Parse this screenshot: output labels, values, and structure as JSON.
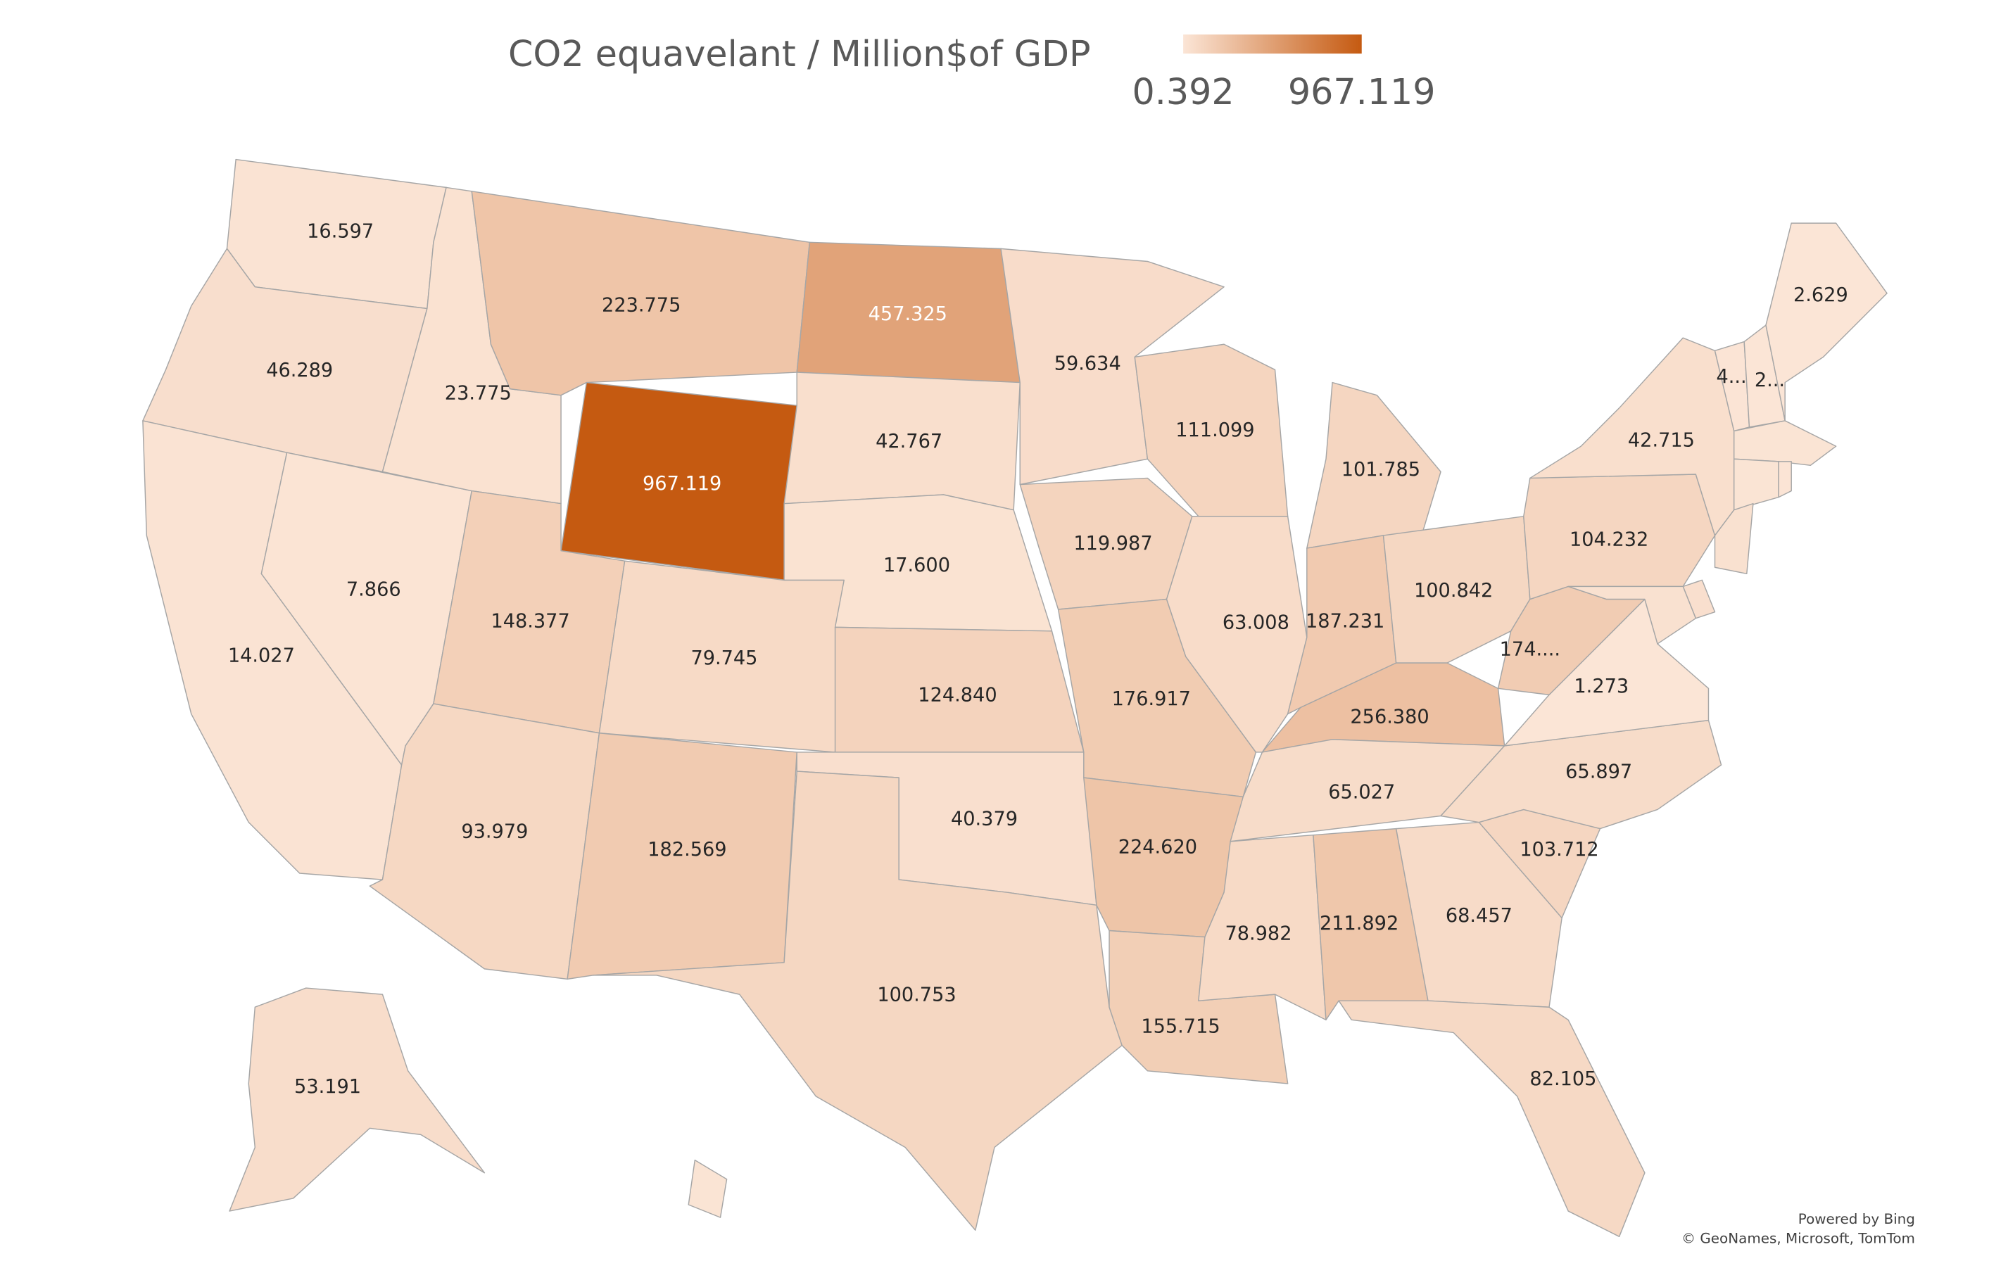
{
  "title": "CO2 equavelant / Million$of GDP",
  "legend": {
    "min": 0.392,
    "max": 967.119,
    "colors": [
      "#fbe5d6",
      "#c55a11"
    ]
  },
  "regions": [
    {
      "label": "16.597",
      "value": 16.597
    },
    {
      "label": "46.289",
      "value": 46.289
    },
    {
      "label": "14.027",
      "value": 14.027
    },
    {
      "label": "7.866",
      "value": 7.866
    },
    {
      "label": "23.775",
      "value": 23.775
    },
    {
      "label": "223.775",
      "value": 223.775
    },
    {
      "label": "967.119",
      "value": 967.119
    },
    {
      "label": "148.377",
      "value": 148.377
    },
    {
      "label": "79.745",
      "value": 79.745
    },
    {
      "label": "93.979",
      "value": 93.979
    },
    {
      "label": "182.569",
      "value": 182.569
    },
    {
      "label": "457.325",
      "value": 457.325
    },
    {
      "label": "42.767",
      "value": 42.767
    },
    {
      "label": "17.600",
      "value": 17.6
    },
    {
      "label": "124.840",
      "value": 124.84
    },
    {
      "label": "40.379",
      "value": 40.379
    },
    {
      "label": "100.753",
      "value": 100.753
    },
    {
      "label": "59.634",
      "value": 59.634
    },
    {
      "label": "119.987",
      "value": 119.987
    },
    {
      "label": "176.917",
      "value": 176.917
    },
    {
      "label": "224.620",
      "value": 224.62
    },
    {
      "label": "155.715",
      "value": 155.715
    },
    {
      "label": "111.099",
      "value": 111.099
    },
    {
      "label": "63.008",
      "value": 63.008
    },
    {
      "label": "101.785",
      "value": 101.785
    },
    {
      "label": "187.231",
      "value": 187.231
    },
    {
      "label": "100.842",
      "value": 100.842
    },
    {
      "label": "256.380",
      "value": 256.38
    },
    {
      "label": "65.027",
      "value": 65.027
    },
    {
      "label": "78.982",
      "value": 78.982
    },
    {
      "label": "211.892",
      "value": 211.892
    },
    {
      "label": "68.457",
      "value": 68.457
    },
    {
      "label": "82.105",
      "value": 82.105
    },
    {
      "label": "103.712",
      "value": 103.712
    },
    {
      "label": "65.897",
      "value": 65.897
    },
    {
      "label": "1.273",
      "value": 1.273
    },
    {
      "label": "174....",
      "value": 174
    },
    {
      "label": "104.232",
      "value": 104.232
    },
    {
      "label": "42.715",
      "value": 42.715
    },
    {
      "label": "4...",
      "value": 4
    },
    {
      "label": "2...",
      "value": 2
    },
    {
      "label": "2.629",
      "value": 2.629
    },
    {
      "label": "53.191",
      "value": 53.191
    },
    {
      "label": null,
      "value": 10
    },
    {
      "label": null,
      "value": 10
    },
    {
      "label": null,
      "value": 5
    },
    {
      "label": null,
      "value": 30
    },
    {
      "label": null,
      "value": 40
    },
    {
      "label": null,
      "value": 30
    },
    {
      "label": null,
      "value": 10
    }
  ],
  "attribution": [
    "Powered by Bing",
    "© GeoNames, Microsoft, TomTom"
  ]
}
